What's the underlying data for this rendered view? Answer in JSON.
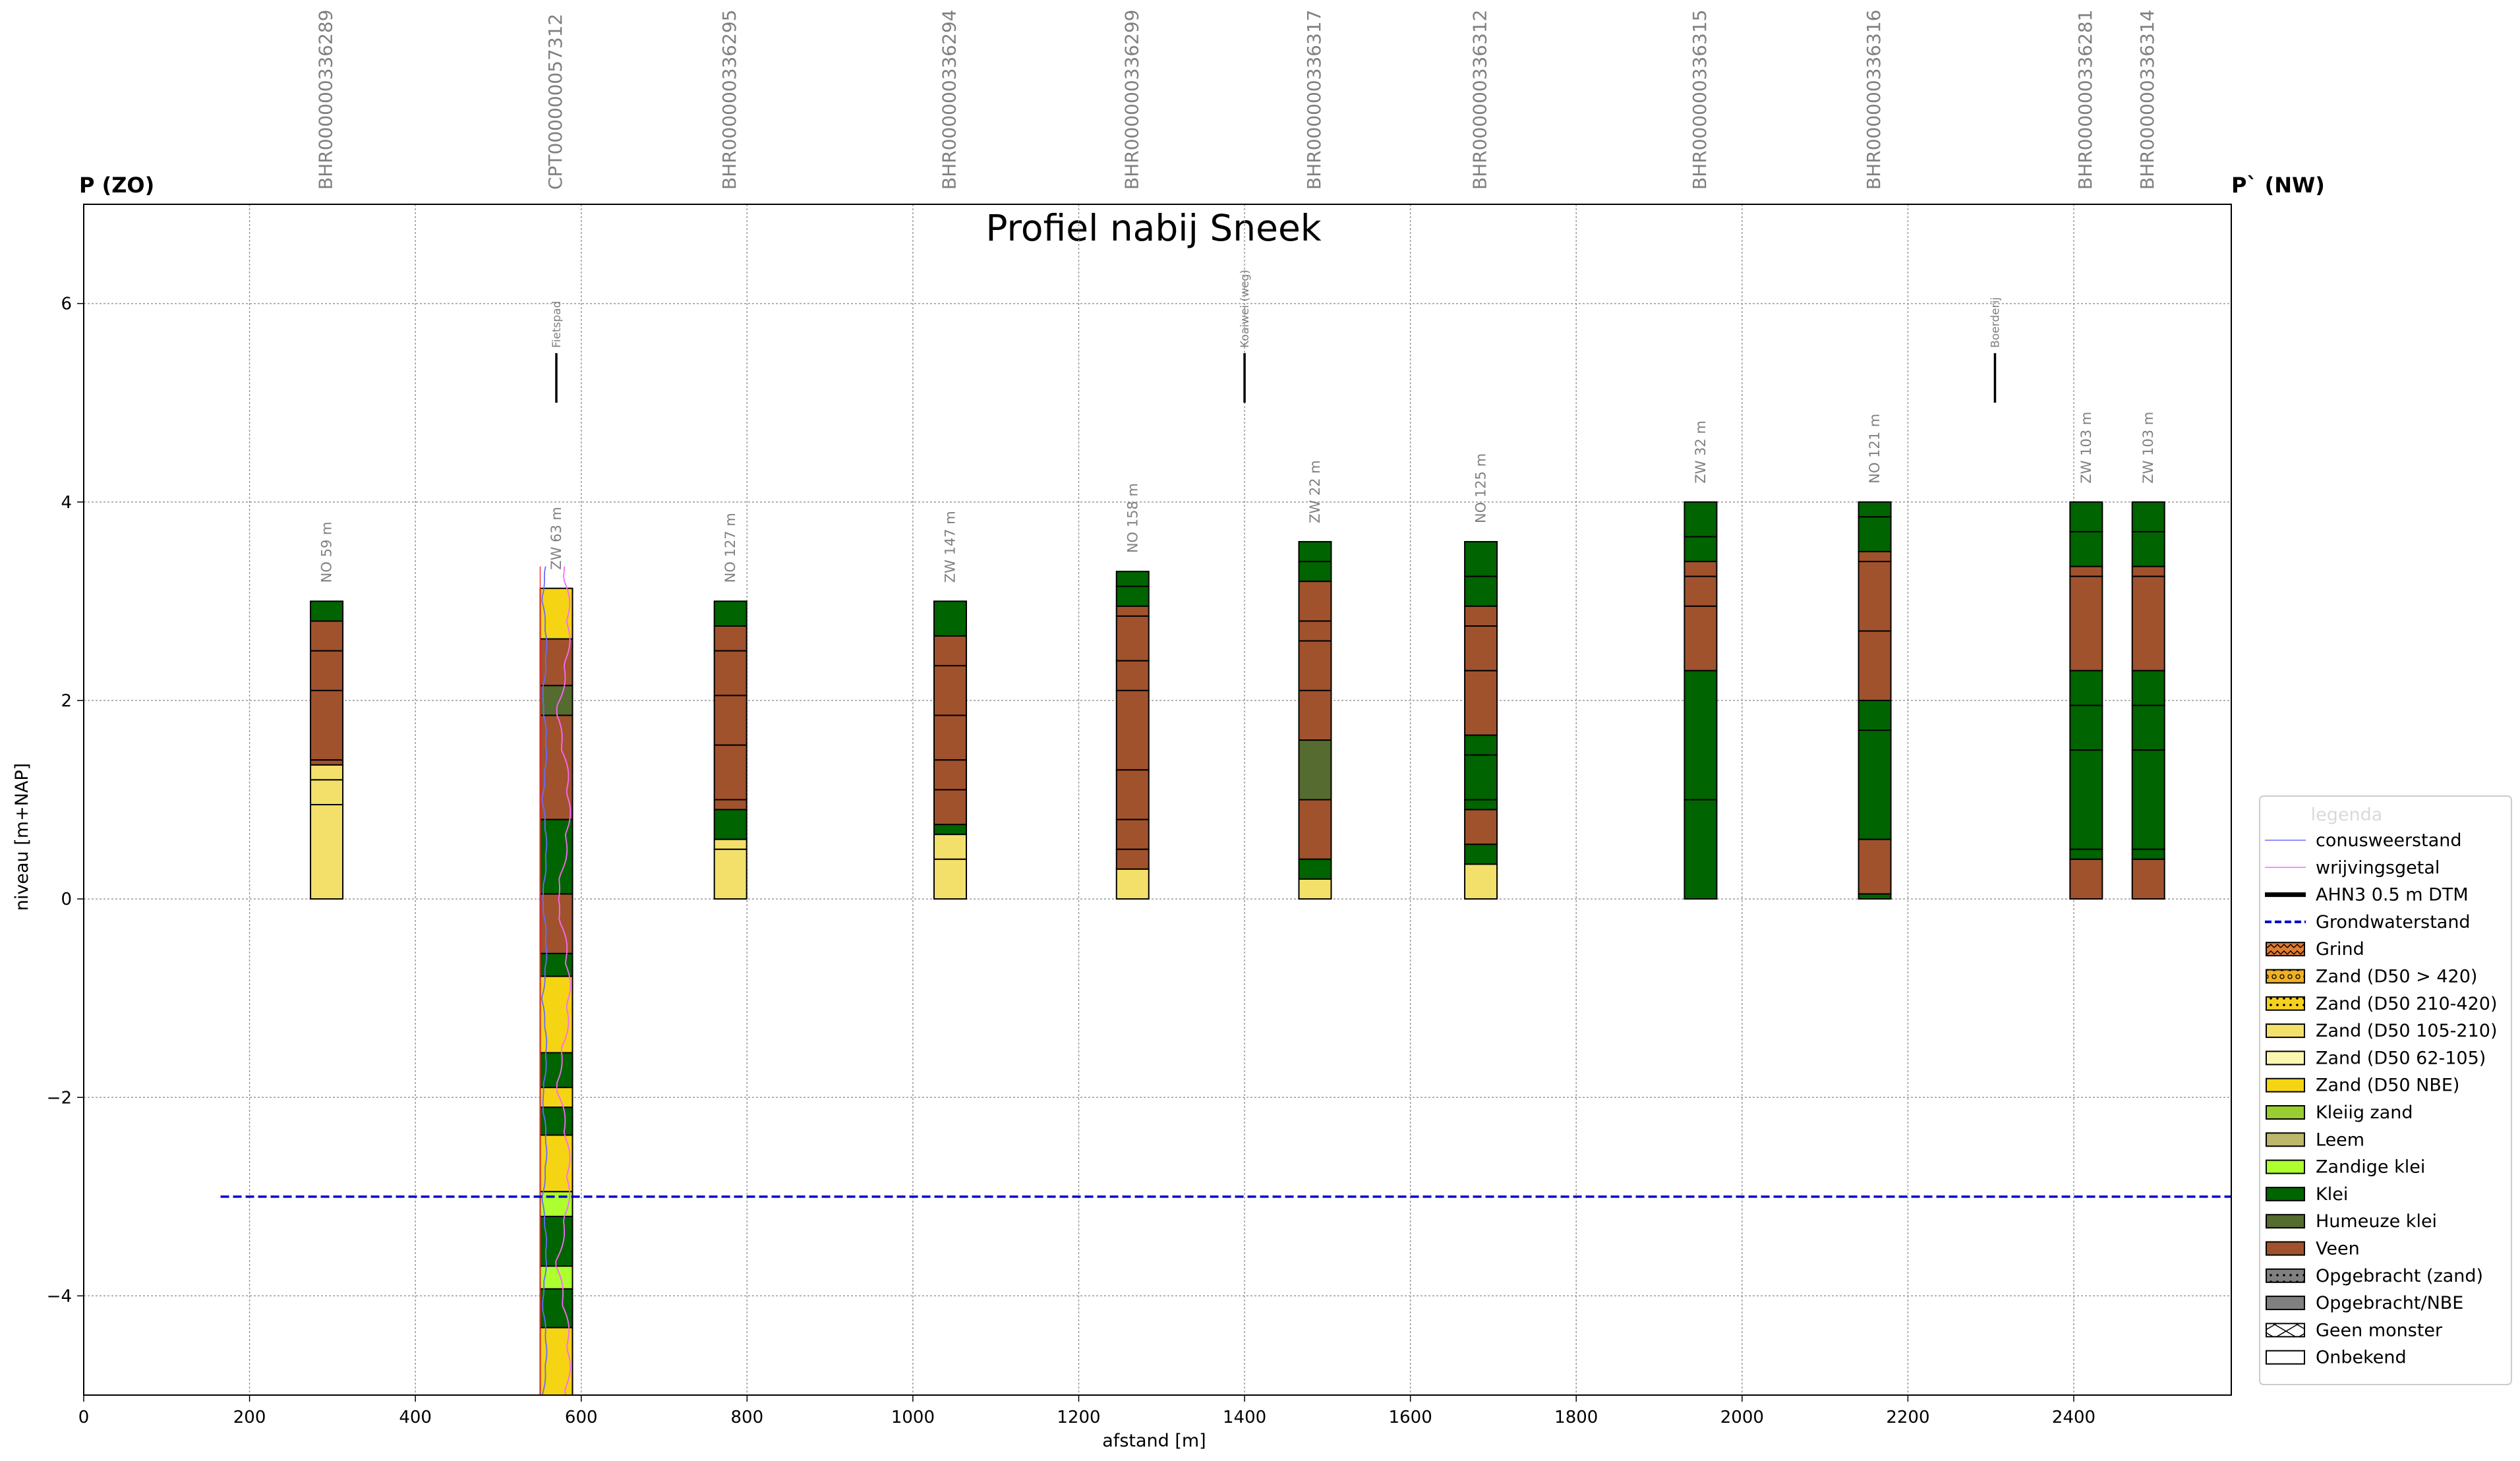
{
  "chart_data": {
    "type": "bar",
    "title": "Profiel nabij Sneek",
    "xlabel": "afstand [m]",
    "ylabel": "niveau [m+NAP]",
    "xlim": [
      0,
      2590
    ],
    "ylim": [
      -5,
      7
    ],
    "xticks": [
      0,
      200,
      400,
      600,
      800,
      1000,
      1200,
      1400,
      1600,
      1800,
      2000,
      2200,
      2400
    ],
    "yticks": [
      -4,
      -2,
      0,
      2,
      4,
      6
    ],
    "ytick_labels": [
      "−4",
      "−2",
      "0",
      "2",
      "4",
      "6"
    ],
    "grid": true,
    "start_label": "P (ZO)",
    "end_label": "P` (NW)",
    "groundwater": {
      "name": "Grondwaterstand",
      "level": -3.0,
      "x_start": 165,
      "x_end": 2590
    },
    "colors": {
      "Grind": "#e07b30",
      "Zand (D50 > 420)": "#f0b020",
      "Zand (D50 210-420)": "#f5d020",
      "Zand (D50 105-210)": "#f3e06b",
      "Zand (D50 62-105)": "#fcf7b0",
      "Zand (D50 NBE)": "#f5d414",
      "Kleiig zand": "#9acd32",
      "Leem": "#bdb76b",
      "Zandige klei": "#adff2f",
      "Klei": "#006400",
      "Humeuze klei": "#556b2f",
      "Veen": "#a0522d",
      "Opgebracht (zand)": "#808080",
      "Opgebracht/NBE": "#808080",
      "Geen monster": "#ffffff",
      "Onbekend": "#ffffff"
    },
    "features": [
      {
        "name": "Fietspad",
        "x": 570
      },
      {
        "name": "Koaiwei (weg)",
        "x": 1400
      },
      {
        "name": "Boerderij",
        "x": 2305
      }
    ],
    "boreholes": [
      {
        "id": "BHR000000336289",
        "x": 293,
        "dist": "NO 59 m",
        "layers": [
          {
            "top": 3.0,
            "bottom": 2.8,
            "type": "Klei"
          },
          {
            "top": 2.8,
            "bottom": 2.5,
            "type": "Veen"
          },
          {
            "top": 2.5,
            "bottom": 2.1,
            "type": "Veen"
          },
          {
            "top": 2.1,
            "bottom": 1.4,
            "type": "Veen"
          },
          {
            "top": 1.4,
            "bottom": 1.35,
            "type": "Veen"
          },
          {
            "top": 1.35,
            "bottom": 1.2,
            "type": "Zand (D50 105-210)"
          },
          {
            "top": 1.2,
            "bottom": 0.95,
            "type": "Zand (D50 105-210)"
          },
          {
            "top": 0.95,
            "bottom": 0.0,
            "type": "Zand (D50 105-210)"
          }
        ]
      },
      {
        "id": "CPT000000057312",
        "x": 570,
        "dist": "ZW 63 m",
        "cpt": true,
        "layers": [
          {
            "top": 3.13,
            "bottom": 2.62,
            "type": "Zand (D50 NBE)"
          },
          {
            "top": 2.62,
            "bottom": 2.15,
            "type": "Veen"
          },
          {
            "top": 2.15,
            "bottom": 1.85,
            "type": "Humeuze klei"
          },
          {
            "top": 1.85,
            "bottom": 0.8,
            "type": "Veen"
          },
          {
            "top": 0.8,
            "bottom": 0.05,
            "type": "Klei"
          },
          {
            "top": 0.05,
            "bottom": -0.55,
            "type": "Veen"
          },
          {
            "top": -0.55,
            "bottom": -0.78,
            "type": "Klei"
          },
          {
            "top": -0.78,
            "bottom": -1.55,
            "type": "Zand (D50 NBE)"
          },
          {
            "top": -1.55,
            "bottom": -1.9,
            "type": "Klei"
          },
          {
            "top": -1.9,
            "bottom": -2.1,
            "type": "Zand (D50 NBE)"
          },
          {
            "top": -2.1,
            "bottom": -2.38,
            "type": "Klei"
          },
          {
            "top": -2.38,
            "bottom": -2.95,
            "type": "Zand (D50 NBE)"
          },
          {
            "top": -2.95,
            "bottom": -3.2,
            "type": "Zandige klei"
          },
          {
            "top": -3.2,
            "bottom": -3.7,
            "type": "Klei"
          },
          {
            "top": -3.7,
            "bottom": -3.93,
            "type": "Zandige klei"
          },
          {
            "top": -3.93,
            "bottom": -4.32,
            "type": "Klei"
          },
          {
            "top": -4.32,
            "bottom": -5.0,
            "type": "Zand (D50 NBE)"
          }
        ]
      },
      {
        "id": "BHR000000336295",
        "x": 780,
        "dist": "NO 127 m",
        "layers": [
          {
            "top": 3.0,
            "bottom": 2.75,
            "type": "Klei"
          },
          {
            "top": 2.75,
            "bottom": 2.5,
            "type": "Veen"
          },
          {
            "top": 2.5,
            "bottom": 2.05,
            "type": "Veen"
          },
          {
            "top": 2.05,
            "bottom": 1.55,
            "type": "Veen"
          },
          {
            "top": 1.55,
            "bottom": 1.0,
            "type": "Veen"
          },
          {
            "top": 1.0,
            "bottom": 0.9,
            "type": "Veen"
          },
          {
            "top": 0.9,
            "bottom": 0.6,
            "type": "Klei"
          },
          {
            "top": 0.6,
            "bottom": 0.5,
            "type": "Zand (D50 105-210)"
          },
          {
            "top": 0.5,
            "bottom": 0.0,
            "type": "Zand (D50 105-210)"
          }
        ]
      },
      {
        "id": "BHR000000336294",
        "x": 1045,
        "dist": "ZW 147 m",
        "layers": [
          {
            "top": 3.0,
            "bottom": 2.65,
            "type": "Klei"
          },
          {
            "top": 2.65,
            "bottom": 2.35,
            "type": "Veen"
          },
          {
            "top": 2.35,
            "bottom": 1.85,
            "type": "Veen"
          },
          {
            "top": 1.85,
            "bottom": 1.4,
            "type": "Veen"
          },
          {
            "top": 1.4,
            "bottom": 1.1,
            "type": "Veen"
          },
          {
            "top": 1.1,
            "bottom": 0.75,
            "type": "Veen"
          },
          {
            "top": 0.75,
            "bottom": 0.65,
            "type": "Klei"
          },
          {
            "top": 0.65,
            "bottom": 0.4,
            "type": "Zand (D50 105-210)"
          },
          {
            "top": 0.4,
            "bottom": 0.0,
            "type": "Zand (D50 105-210)"
          }
        ]
      },
      {
        "id": "BHR000000336299",
        "x": 1265,
        "dist": "NO 158 m",
        "layers": [
          {
            "top": 3.3,
            "bottom": 3.15,
            "type": "Klei"
          },
          {
            "top": 3.15,
            "bottom": 2.95,
            "type": "Klei"
          },
          {
            "top": 2.95,
            "bottom": 2.85,
            "type": "Veen"
          },
          {
            "top": 2.85,
            "bottom": 2.4,
            "type": "Veen"
          },
          {
            "top": 2.4,
            "bottom": 2.1,
            "type": "Veen"
          },
          {
            "top": 2.1,
            "bottom": 1.3,
            "type": "Veen"
          },
          {
            "top": 1.3,
            "bottom": 0.8,
            "type": "Veen"
          },
          {
            "top": 0.8,
            "bottom": 0.5,
            "type": "Veen"
          },
          {
            "top": 0.5,
            "bottom": 0.3,
            "type": "Veen"
          },
          {
            "top": 0.3,
            "bottom": 0.0,
            "type": "Zand (D50 105-210)"
          }
        ]
      },
      {
        "id": "BHR000000336317",
        "x": 1485,
        "dist": "ZW 22 m",
        "layers": [
          {
            "top": 3.6,
            "bottom": 3.4,
            "type": "Klei"
          },
          {
            "top": 3.4,
            "bottom": 3.2,
            "type": "Klei"
          },
          {
            "top": 3.2,
            "bottom": 2.8,
            "type": "Veen"
          },
          {
            "top": 2.8,
            "bottom": 2.6,
            "type": "Veen"
          },
          {
            "top": 2.6,
            "bottom": 2.1,
            "type": "Veen"
          },
          {
            "top": 2.1,
            "bottom": 1.6,
            "type": "Veen"
          },
          {
            "top": 1.6,
            "bottom": 1.0,
            "type": "Humeuze klei"
          },
          {
            "top": 1.0,
            "bottom": 0.4,
            "type": "Veen"
          },
          {
            "top": 0.4,
            "bottom": 0.2,
            "type": "Klei"
          },
          {
            "top": 0.2,
            "bottom": 0.0,
            "type": "Zand (D50 105-210)"
          }
        ]
      },
      {
        "id": "BHR000000336312",
        "x": 1685,
        "dist": "NO 125 m",
        "layers": [
          {
            "top": 3.6,
            "bottom": 3.25,
            "type": "Klei"
          },
          {
            "top": 3.25,
            "bottom": 2.95,
            "type": "Klei"
          },
          {
            "top": 2.95,
            "bottom": 2.75,
            "type": "Veen"
          },
          {
            "top": 2.75,
            "bottom": 2.3,
            "type": "Veen"
          },
          {
            "top": 2.3,
            "bottom": 1.65,
            "type": "Veen"
          },
          {
            "top": 1.65,
            "bottom": 1.45,
            "type": "Klei"
          },
          {
            "top": 1.45,
            "bottom": 1.0,
            "type": "Klei"
          },
          {
            "top": 1.0,
            "bottom": 0.9,
            "type": "Klei"
          },
          {
            "top": 0.9,
            "bottom": 0.55,
            "type": "Veen"
          },
          {
            "top": 0.55,
            "bottom": 0.35,
            "type": "Klei"
          },
          {
            "top": 0.35,
            "bottom": 0.0,
            "type": "Zand (D50 105-210)"
          }
        ]
      },
      {
        "id": "BHR000000336315",
        "x": 1950,
        "dist": "ZW 32 m",
        "layers": [
          {
            "top": 4.0,
            "bottom": 3.65,
            "type": "Klei"
          },
          {
            "top": 3.65,
            "bottom": 3.4,
            "type": "Klei"
          },
          {
            "top": 3.4,
            "bottom": 3.25,
            "type": "Veen"
          },
          {
            "top": 3.25,
            "bottom": 2.95,
            "type": "Veen"
          },
          {
            "top": 2.95,
            "bottom": 2.3,
            "type": "Veen"
          },
          {
            "top": 2.3,
            "bottom": 1.0,
            "type": "Klei"
          },
          {
            "top": 1.0,
            "bottom": 0.0,
            "type": "Klei"
          }
        ]
      },
      {
        "id": "BHR000000336316",
        "x": 2160,
        "dist": "NO 121 m",
        "layers": [
          {
            "top": 4.0,
            "bottom": 3.85,
            "type": "Klei"
          },
          {
            "top": 3.85,
            "bottom": 3.5,
            "type": "Klei"
          },
          {
            "top": 3.5,
            "bottom": 3.4,
            "type": "Veen"
          },
          {
            "top": 3.4,
            "bottom": 2.7,
            "type": "Veen"
          },
          {
            "top": 2.7,
            "bottom": 2.0,
            "type": "Veen"
          },
          {
            "top": 2.0,
            "bottom": 1.7,
            "type": "Klei"
          },
          {
            "top": 1.7,
            "bottom": 0.6,
            "type": "Klei"
          },
          {
            "top": 0.6,
            "bottom": 0.05,
            "type": "Veen"
          },
          {
            "top": 0.05,
            "bottom": 0.0,
            "type": "Klei"
          }
        ]
      },
      {
        "id": "BHR000000336281",
        "x": 2415,
        "dist": "ZW 103 m",
        "layers": [
          {
            "top": 4.0,
            "bottom": 3.7,
            "type": "Klei"
          },
          {
            "top": 3.7,
            "bottom": 3.35,
            "type": "Klei"
          },
          {
            "top": 3.35,
            "bottom": 3.25,
            "type": "Veen"
          },
          {
            "top": 3.25,
            "bottom": 2.3,
            "type": "Veen"
          },
          {
            "top": 2.3,
            "bottom": 1.95,
            "type": "Klei"
          },
          {
            "top": 1.95,
            "bottom": 1.5,
            "type": "Klei"
          },
          {
            "top": 1.5,
            "bottom": 0.5,
            "type": "Klei"
          },
          {
            "top": 0.5,
            "bottom": 0.4,
            "type": "Klei"
          },
          {
            "top": 0.4,
            "bottom": 0.0,
            "type": "Veen"
          }
        ]
      },
      {
        "id": "BHR000000336314",
        "x": 2490,
        "dist": "ZW 103 m",
        "layers": [
          {
            "top": 4.0,
            "bottom": 3.7,
            "type": "Klei"
          },
          {
            "top": 3.7,
            "bottom": 3.35,
            "type": "Klei"
          },
          {
            "top": 3.35,
            "bottom": 3.25,
            "type": "Veen"
          },
          {
            "top": 3.25,
            "bottom": 2.3,
            "type": "Veen"
          },
          {
            "top": 2.3,
            "bottom": 1.95,
            "type": "Klei"
          },
          {
            "top": 1.95,
            "bottom": 1.5,
            "type": "Klei"
          },
          {
            "top": 1.5,
            "bottom": 0.5,
            "type": "Klei"
          },
          {
            "top": 0.5,
            "bottom": 0.4,
            "type": "Klei"
          },
          {
            "top": 0.4,
            "bottom": 0.0,
            "type": "Veen"
          }
        ]
      }
    ],
    "legend": {
      "title": "legenda",
      "placement": "right",
      "lines": [
        {
          "label": "conusweerstand",
          "color": "#6a6aff",
          "style": "thin"
        },
        {
          "label": "wrijvingsgetal",
          "color": "#ff66ff",
          "style": "thin"
        },
        {
          "label": "AHN3 0.5 m DTM",
          "color": "#000000",
          "style": "thick"
        },
        {
          "label": "Grondwaterstand",
          "color": "#0000cc",
          "style": "dashed"
        }
      ],
      "patches": [
        "Grind",
        "Zand (D50 > 420)",
        "Zand (D50 210-420)",
        "Zand (D50 105-210)",
        "Zand (D50 62-105)",
        "Zand (D50 NBE)",
        "Kleiig zand",
        "Leem",
        "Zandige klei",
        "Klei",
        "Humeuze klei",
        "Veen",
        "Opgebracht (zand)",
        "Opgebracht/NBE",
        "Geen monster",
        "Onbekend"
      ]
    }
  }
}
